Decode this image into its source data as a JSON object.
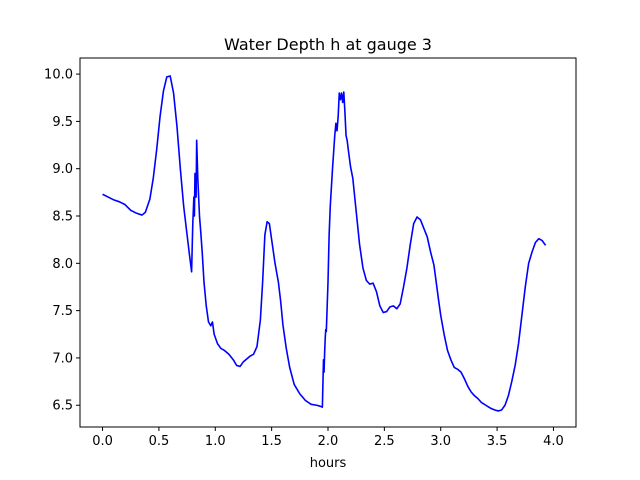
{
  "chart_data": {
    "type": "line",
    "title": "Water Depth h at gauge 3",
    "xlabel": "hours",
    "ylabel": "",
    "xlim": [
      -0.2,
      4.2
    ],
    "ylim": [
      6.27,
      10.17
    ],
    "xticks": [
      0.0,
      0.5,
      1.0,
      1.5,
      2.0,
      2.5,
      3.0,
      3.5,
      4.0
    ],
    "xtick_labels": [
      "0.0",
      "0.5",
      "1.0",
      "1.5",
      "2.0",
      "2.5",
      "3.0",
      "3.5",
      "4.0"
    ],
    "yticks": [
      6.5,
      7.0,
      7.5,
      8.0,
      8.5,
      9.0,
      9.5,
      10.0
    ],
    "ytick_labels": [
      "6.5",
      "7.0",
      "7.5",
      "8.0",
      "8.5",
      "9.0",
      "9.5",
      "10.0"
    ],
    "grid": false,
    "series": [
      {
        "color": "#0000ff",
        "points": [
          [
            0.0,
            8.73
          ],
          [
            0.05,
            8.7
          ],
          [
            0.1,
            8.67
          ],
          [
            0.15,
            8.65
          ],
          [
            0.2,
            8.62
          ],
          [
            0.25,
            8.56
          ],
          [
            0.3,
            8.53
          ],
          [
            0.35,
            8.51
          ],
          [
            0.38,
            8.54
          ],
          [
            0.42,
            8.68
          ],
          [
            0.45,
            8.9
          ],
          [
            0.48,
            9.2
          ],
          [
            0.51,
            9.55
          ],
          [
            0.54,
            9.82
          ],
          [
            0.57,
            9.97
          ],
          [
            0.6,
            9.98
          ],
          [
            0.63,
            9.8
          ],
          [
            0.66,
            9.45
          ],
          [
            0.69,
            9.0
          ],
          [
            0.72,
            8.6
          ],
          [
            0.75,
            8.3
          ],
          [
            0.77,
            8.1
          ],
          [
            0.79,
            7.91
          ],
          [
            0.8,
            8.4
          ],
          [
            0.81,
            8.7
          ],
          [
            0.815,
            8.5
          ],
          [
            0.82,
            8.95
          ],
          [
            0.83,
            8.7
          ],
          [
            0.835,
            9.3
          ],
          [
            0.845,
            8.9
          ],
          [
            0.86,
            8.5
          ],
          [
            0.87,
            8.35
          ],
          [
            0.885,
            8.1
          ],
          [
            0.9,
            7.8
          ],
          [
            0.92,
            7.55
          ],
          [
            0.94,
            7.38
          ],
          [
            0.96,
            7.34
          ],
          [
            0.975,
            7.38
          ],
          [
            0.99,
            7.25
          ],
          [
            1.02,
            7.15
          ],
          [
            1.05,
            7.1
          ],
          [
            1.08,
            7.08
          ],
          [
            1.12,
            7.04
          ],
          [
            1.16,
            6.98
          ],
          [
            1.19,
            6.92
          ],
          [
            1.22,
            6.91
          ],
          [
            1.25,
            6.96
          ],
          [
            1.28,
            6.99
          ],
          [
            1.31,
            7.02
          ],
          [
            1.34,
            7.04
          ],
          [
            1.37,
            7.12
          ],
          [
            1.4,
            7.4
          ],
          [
            1.42,
            7.8
          ],
          [
            1.44,
            8.3
          ],
          [
            1.46,
            8.44
          ],
          [
            1.48,
            8.42
          ],
          [
            1.5,
            8.25
          ],
          [
            1.53,
            8.0
          ],
          [
            1.56,
            7.8
          ],
          [
            1.58,
            7.6
          ],
          [
            1.6,
            7.35
          ],
          [
            1.63,
            7.1
          ],
          [
            1.66,
            6.9
          ],
          [
            1.7,
            6.72
          ],
          [
            1.75,
            6.62
          ],
          [
            1.8,
            6.55
          ],
          [
            1.85,
            6.51
          ],
          [
            1.9,
            6.5
          ],
          [
            1.93,
            6.49
          ],
          [
            1.95,
            6.48
          ],
          [
            1.96,
            6.98
          ],
          [
            1.965,
            6.85
          ],
          [
            1.97,
            7.05
          ],
          [
            1.975,
            7.2
          ],
          [
            1.98,
            7.3
          ],
          [
            1.985,
            7.28
          ],
          [
            1.99,
            7.45
          ],
          [
            2.0,
            7.8
          ],
          [
            2.01,
            8.3
          ],
          [
            2.02,
            8.6
          ],
          [
            2.04,
            9.0
          ],
          [
            2.06,
            9.35
          ],
          [
            2.07,
            9.48
          ],
          [
            2.08,
            9.4
          ],
          [
            2.09,
            9.55
          ],
          [
            2.1,
            9.8
          ],
          [
            2.11,
            9.73
          ],
          [
            2.12,
            9.8
          ],
          [
            2.13,
            9.7
          ],
          [
            2.14,
            9.81
          ],
          [
            2.15,
            9.6
          ],
          [
            2.16,
            9.35
          ],
          [
            2.17,
            9.3
          ],
          [
            2.18,
            9.2
          ],
          [
            2.2,
            9.02
          ],
          [
            2.22,
            8.9
          ],
          [
            2.25,
            8.55
          ],
          [
            2.28,
            8.2
          ],
          [
            2.31,
            7.95
          ],
          [
            2.34,
            7.82
          ],
          [
            2.37,
            7.78
          ],
          [
            2.4,
            7.79
          ],
          [
            2.43,
            7.7
          ],
          [
            2.46,
            7.55
          ],
          [
            2.49,
            7.48
          ],
          [
            2.52,
            7.49
          ],
          [
            2.55,
            7.54
          ],
          [
            2.58,
            7.55
          ],
          [
            2.61,
            7.52
          ],
          [
            2.64,
            7.57
          ],
          [
            2.67,
            7.75
          ],
          [
            2.7,
            7.95
          ],
          [
            2.73,
            8.2
          ],
          [
            2.76,
            8.42
          ],
          [
            2.79,
            8.49
          ],
          [
            2.82,
            8.46
          ],
          [
            2.85,
            8.37
          ],
          [
            2.88,
            8.28
          ],
          [
            2.91,
            8.12
          ],
          [
            2.94,
            7.98
          ],
          [
            2.96,
            7.8
          ],
          [
            2.98,
            7.62
          ],
          [
            3.0,
            7.45
          ],
          [
            3.03,
            7.25
          ],
          [
            3.06,
            7.08
          ],
          [
            3.09,
            6.98
          ],
          [
            3.12,
            6.9
          ],
          [
            3.15,
            6.88
          ],
          [
            3.18,
            6.85
          ],
          [
            3.21,
            6.78
          ],
          [
            3.24,
            6.7
          ],
          [
            3.27,
            6.64
          ],
          [
            3.3,
            6.6
          ],
          [
            3.33,
            6.57
          ],
          [
            3.36,
            6.53
          ],
          [
            3.4,
            6.5
          ],
          [
            3.44,
            6.47
          ],
          [
            3.48,
            6.45
          ],
          [
            3.51,
            6.44
          ],
          [
            3.54,
            6.45
          ],
          [
            3.57,
            6.5
          ],
          [
            3.6,
            6.6
          ],
          [
            3.63,
            6.75
          ],
          [
            3.66,
            6.92
          ],
          [
            3.69,
            7.15
          ],
          [
            3.72,
            7.45
          ],
          [
            3.75,
            7.75
          ],
          [
            3.78,
            8.0
          ],
          [
            3.81,
            8.12
          ],
          [
            3.84,
            8.22
          ],
          [
            3.87,
            8.26
          ],
          [
            3.9,
            8.24
          ],
          [
            3.93,
            8.19
          ]
        ]
      }
    ]
  }
}
